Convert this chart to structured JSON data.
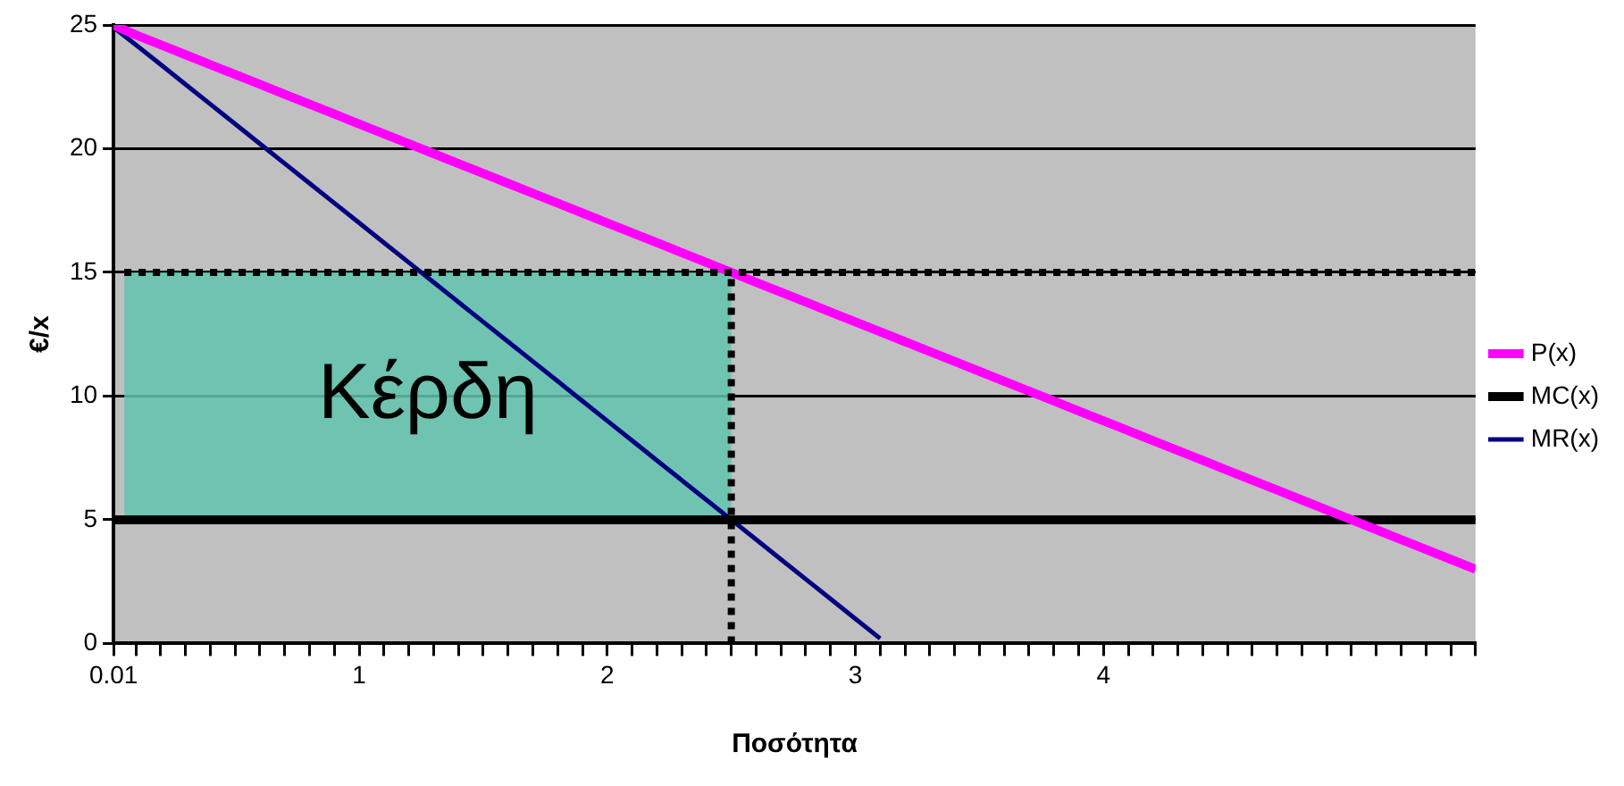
{
  "chart_data": {
    "type": "line",
    "xlabel": "Ποσότητα",
    "ylabel": "€/x",
    "x": [
      0.01,
      0.1,
      0.2,
      0.3,
      0.4,
      0.5,
      0.6,
      0.7,
      0.8,
      0.9,
      1,
      1.1,
      1.2,
      1.3,
      1.4,
      1.5,
      1.6,
      1.7,
      1.8,
      1.9,
      2,
      2.1,
      2.2,
      2.3,
      2.4,
      2.5,
      2.6,
      2.7,
      2.8,
      2.9,
      3,
      3.1,
      3.2,
      3.3,
      3.4,
      3.5,
      3.6,
      3.7,
      3.8,
      3.9,
      4,
      4.1,
      4.2,
      4.3,
      4.4,
      4.5,
      4.6,
      4.7,
      4.8,
      4.9,
      5,
      5.1,
      5.2,
      5.3,
      5.4,
      5.5
    ],
    "series": [
      {
        "name": "P(x)",
        "color": "#ff00ff",
        "values": [
          25,
          24.6,
          24.2,
          23.8,
          23.4,
          23,
          22.6,
          22.2,
          21.8,
          21.4,
          21,
          20.6,
          20.2,
          19.8,
          19.4,
          19,
          18.6,
          18.2,
          17.8,
          17.4,
          17,
          16.6,
          16.2,
          15.8,
          15.4,
          15,
          14.6,
          14.2,
          13.8,
          13.4,
          13,
          12.6,
          12.2,
          11.8,
          11.4,
          11,
          10.6,
          10.2,
          9.8,
          9.4,
          9,
          8.6,
          8.2,
          7.8,
          7.4,
          7,
          6.6,
          6.2,
          5.8,
          5.4,
          5,
          4.6,
          4.2,
          3.8,
          3.4,
          3
        ]
      },
      {
        "name": "MC(x)",
        "color": "#000000",
        "values": [
          5,
          5,
          5,
          5,
          5,
          5,
          5,
          5,
          5,
          5,
          5,
          5,
          5,
          5,
          5,
          5,
          5,
          5,
          5,
          5,
          5,
          5,
          5,
          5,
          5,
          5,
          5,
          5,
          5,
          5,
          5,
          5,
          5,
          5,
          5,
          5,
          5,
          5,
          5,
          5,
          5,
          5,
          5,
          5,
          5,
          5,
          5,
          5,
          5,
          5,
          5,
          5,
          5,
          5,
          5,
          5
        ]
      },
      {
        "name": "MR(x)",
        "color": "#000080",
        "values": [
          24.9,
          24.2,
          23.4,
          22.6,
          21.8,
          21,
          20.2,
          19.4,
          18.6,
          17.8,
          17,
          16.2,
          15.4,
          14.6,
          13.8,
          13,
          12.2,
          11.4,
          10.6,
          9.8,
          9,
          8.2,
          7.4,
          6.6,
          5.8,
          5,
          4.2,
          3.4,
          2.6,
          1.8,
          1,
          0.2,
          null,
          null,
          null,
          null,
          null,
          null,
          null,
          null,
          null,
          null,
          null,
          null,
          null,
          null,
          null,
          null,
          null,
          null,
          null,
          null,
          null,
          null,
          null,
          null
        ]
      }
    ],
    "xlim": [
      0.01,
      5.5
    ],
    "xticks": [
      0.01,
      {
        "value": 0.1,
        "label": null
      },
      {
        "value": 0.2,
        "label": null
      },
      {
        "value": 0.3,
        "label": null
      },
      {
        "value": 0.4,
        "label": null
      },
      {
        "value": 0.5,
        "label": null
      },
      {
        "value": 0.6,
        "label": null
      },
      {
        "value": 0.7,
        "label": null
      },
      {
        "value": 0.8,
        "label": null
      },
      {
        "value": 0.9,
        "label": null
      },
      1,
      {
        "value": 1.1,
        "label": null
      },
      {
        "value": 1.2,
        "label": null
      },
      {
        "value": 1.3,
        "label": null
      },
      {
        "value": 1.4,
        "label": null
      },
      {
        "value": 1.5,
        "label": null
      },
      {
        "value": 1.6,
        "label": null
      },
      {
        "value": 1.7,
        "label": null
      },
      {
        "value": 1.8,
        "label": null
      },
      {
        "value": 1.9,
        "label": null
      },
      2,
      {
        "value": 2.1,
        "label": null
      },
      {
        "value": 2.2,
        "label": null
      },
      {
        "value": 2.3,
        "label": null
      },
      {
        "value": 2.4,
        "label": null
      },
      {
        "value": 2.5,
        "label": null
      },
      {
        "value": 2.6,
        "label": null
      },
      {
        "value": 2.7,
        "label": null
      },
      {
        "value": 2.8,
        "label": null
      },
      {
        "value": 2.9,
        "label": null
      },
      3,
      {
        "value": 3.1,
        "label": null
      },
      {
        "value": 3.2,
        "label": null
      },
      {
        "value": 3.3,
        "label": null
      },
      {
        "value": 3.4,
        "label": null
      },
      {
        "value": 3.5,
        "label": null
      },
      {
        "value": 3.6,
        "label": null
      },
      {
        "value": 3.7,
        "label": null
      },
      {
        "value": 3.8,
        "label": null
      },
      {
        "value": 3.9,
        "label": null
      },
      4,
      {
        "value": 4.1,
        "label": null
      },
      {
        "value": 4.2,
        "label": null
      },
      {
        "value": 4.3,
        "label": null
      },
      {
        "value": 4.4,
        "label": null
      },
      {
        "value": 4.5,
        "label": null
      },
      {
        "value": 4.6,
        "label": null
      },
      {
        "value": 4.7,
        "label": null
      },
      {
        "value": 4.8,
        "label": null
      },
      {
        "value": 4.9,
        "label": null
      },
      {
        "value": 5,
        "label": null
      },
      {
        "value": 5.1,
        "label": null
      },
      {
        "value": 5.2,
        "label": null
      },
      {
        "value": 5.3,
        "label": null
      },
      {
        "value": 5.4,
        "label": null
      },
      {
        "value": 5.5,
        "label": null
      }
    ],
    "ylim": [
      0,
      25
    ],
    "yticks": [
      0,
      5,
      10,
      15,
      20,
      25
    ],
    "grid": "y",
    "legend": "right",
    "marker": "none",
    "line_style": "solid",
    "ref_lines": [
      {
        "axis": "y",
        "value": 15,
        "color": "#000000",
        "line_style": "dotted"
      },
      {
        "axis": "x",
        "value": 2.5,
        "color": "#000000",
        "line_style": "dotted"
      }
    ],
    "bands": [
      {
        "axis": "y",
        "from": 5,
        "to": 15,
        "label": "Κέρδη",
        "color": "#5fc4ae"
      }
    ]
  }
}
